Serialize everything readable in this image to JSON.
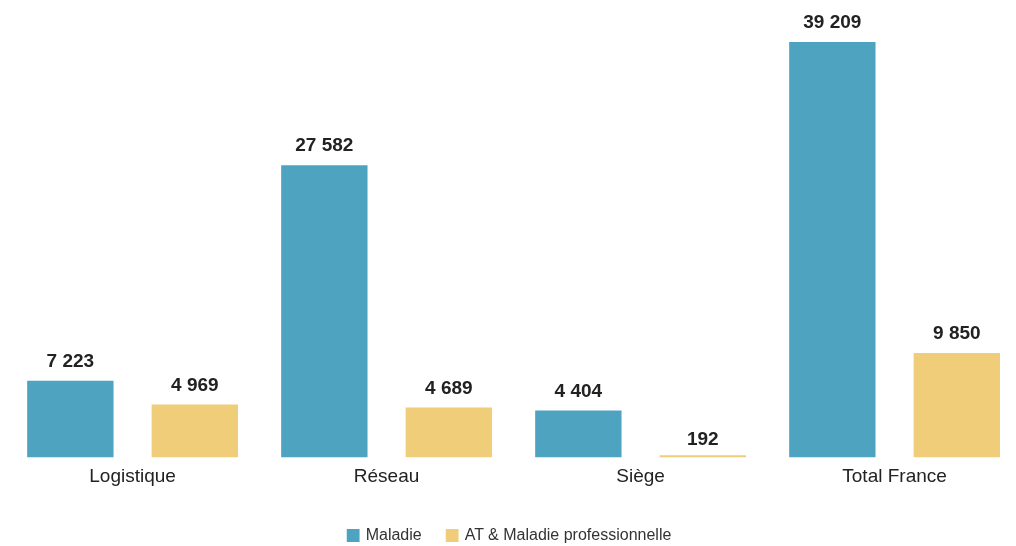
{
  "chart_data": {
    "type": "bar",
    "categories": [
      "Logistique",
      "Réseau",
      "Siège",
      "Total France"
    ],
    "series": [
      {
        "name": "Maladie",
        "color": "#4ea3c1",
        "values": [
          7223,
          27582,
          4404,
          39209
        ],
        "value_labels": [
          "7 223",
          "27 582",
          "4 404",
          "39 209"
        ]
      },
      {
        "name": "AT & Maladie professionnelle",
        "color": "#f0cd78",
        "values": [
          4969,
          4689,
          192,
          9850
        ],
        "value_labels": [
          "4 969",
          "4 689",
          "192",
          "9 850"
        ]
      }
    ],
    "legend": "bottom"
  }
}
